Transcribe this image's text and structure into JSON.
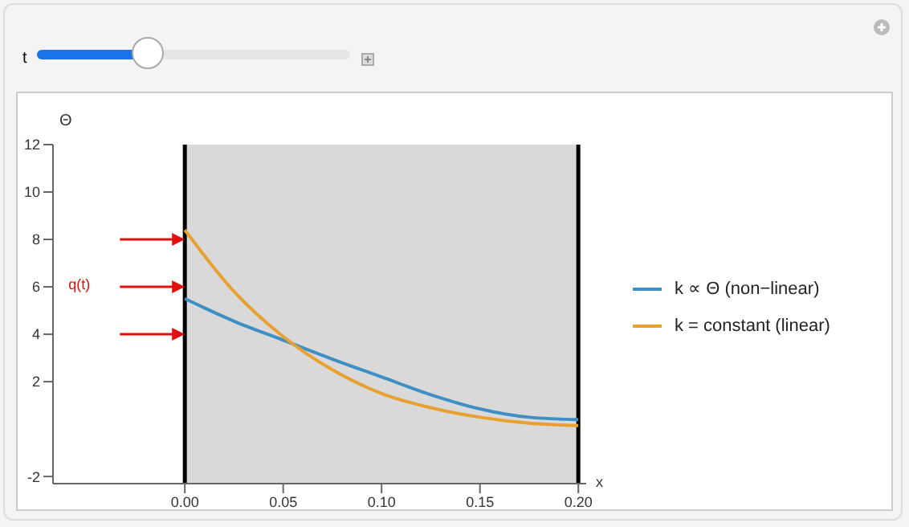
{
  "chart_data": {
    "type": "line",
    "xlabel": "x",
    "ylabel": "Θ",
    "annotations": [
      "q(t)",
      "t"
    ],
    "x": [
      0,
      0.025,
      0.05,
      0.075,
      0.1,
      0.125,
      0.15,
      0.175,
      0.2
    ],
    "series": [
      {
        "name": "k ∝ Θ (non−linear)",
        "color": "#3d8fc4",
        "values": [
          5.5,
          4.55,
          3.75,
          2.95,
          2.2,
          1.45,
          0.85,
          0.5,
          0.4
        ]
      },
      {
        "name": "k = constant (linear)",
        "color": "#e8a030",
        "values": [
          8.4,
          5.8,
          3.9,
          2.5,
          1.5,
          0.9,
          0.5,
          0.25,
          0.15
        ]
      }
    ],
    "xlim": [
      -0.067,
      0.204
    ],
    "xticks": [
      {
        "value": 0,
        "label": "0.00"
      },
      {
        "value": 0.05,
        "label": "0.05"
      },
      {
        "value": 0.1,
        "label": "0.10"
      },
      {
        "value": 0.15,
        "label": "0.15"
      },
      {
        "value": 0.2,
        "label": "0.20"
      }
    ],
    "ylim": [
      -2.3,
      12
    ],
    "yticks": [
      -2,
      2,
      4,
      6,
      8,
      10,
      12
    ],
    "bands": [
      {
        "axis": "x",
        "from": 0,
        "to": 0.2,
        "color": "#d9d9d9"
      }
    ],
    "ref_lines": [
      {
        "axis": "x",
        "value": 0,
        "color": "#000000"
      },
      {
        "axis": "x",
        "value": 0.2,
        "color": "#000000"
      }
    ],
    "legend": "right",
    "marker": "none",
    "line_style": "solid"
  }
}
